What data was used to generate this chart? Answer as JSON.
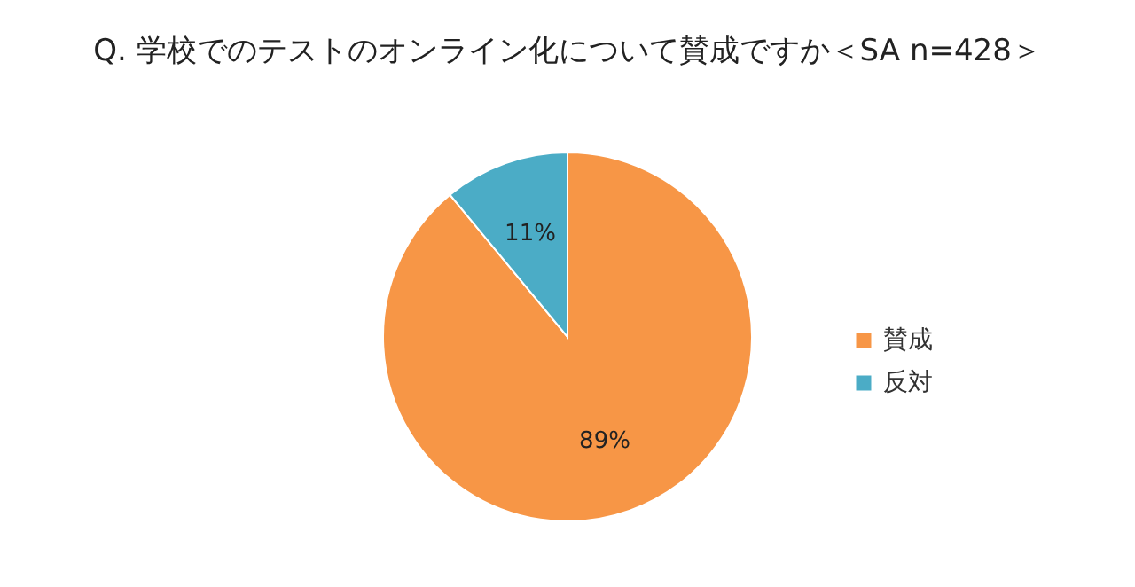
{
  "chart_data": {
    "type": "pie",
    "title": "Q. 学校でのテストのオンライン化について賛成ですか＜SA n=428＞",
    "categories": [
      "賛成",
      "反対"
    ],
    "values": [
      89,
      11
    ],
    "colors": [
      "#f79646",
      "#4bacc6"
    ],
    "value_labels": [
      "89%",
      "11%"
    ],
    "legend": "right"
  }
}
